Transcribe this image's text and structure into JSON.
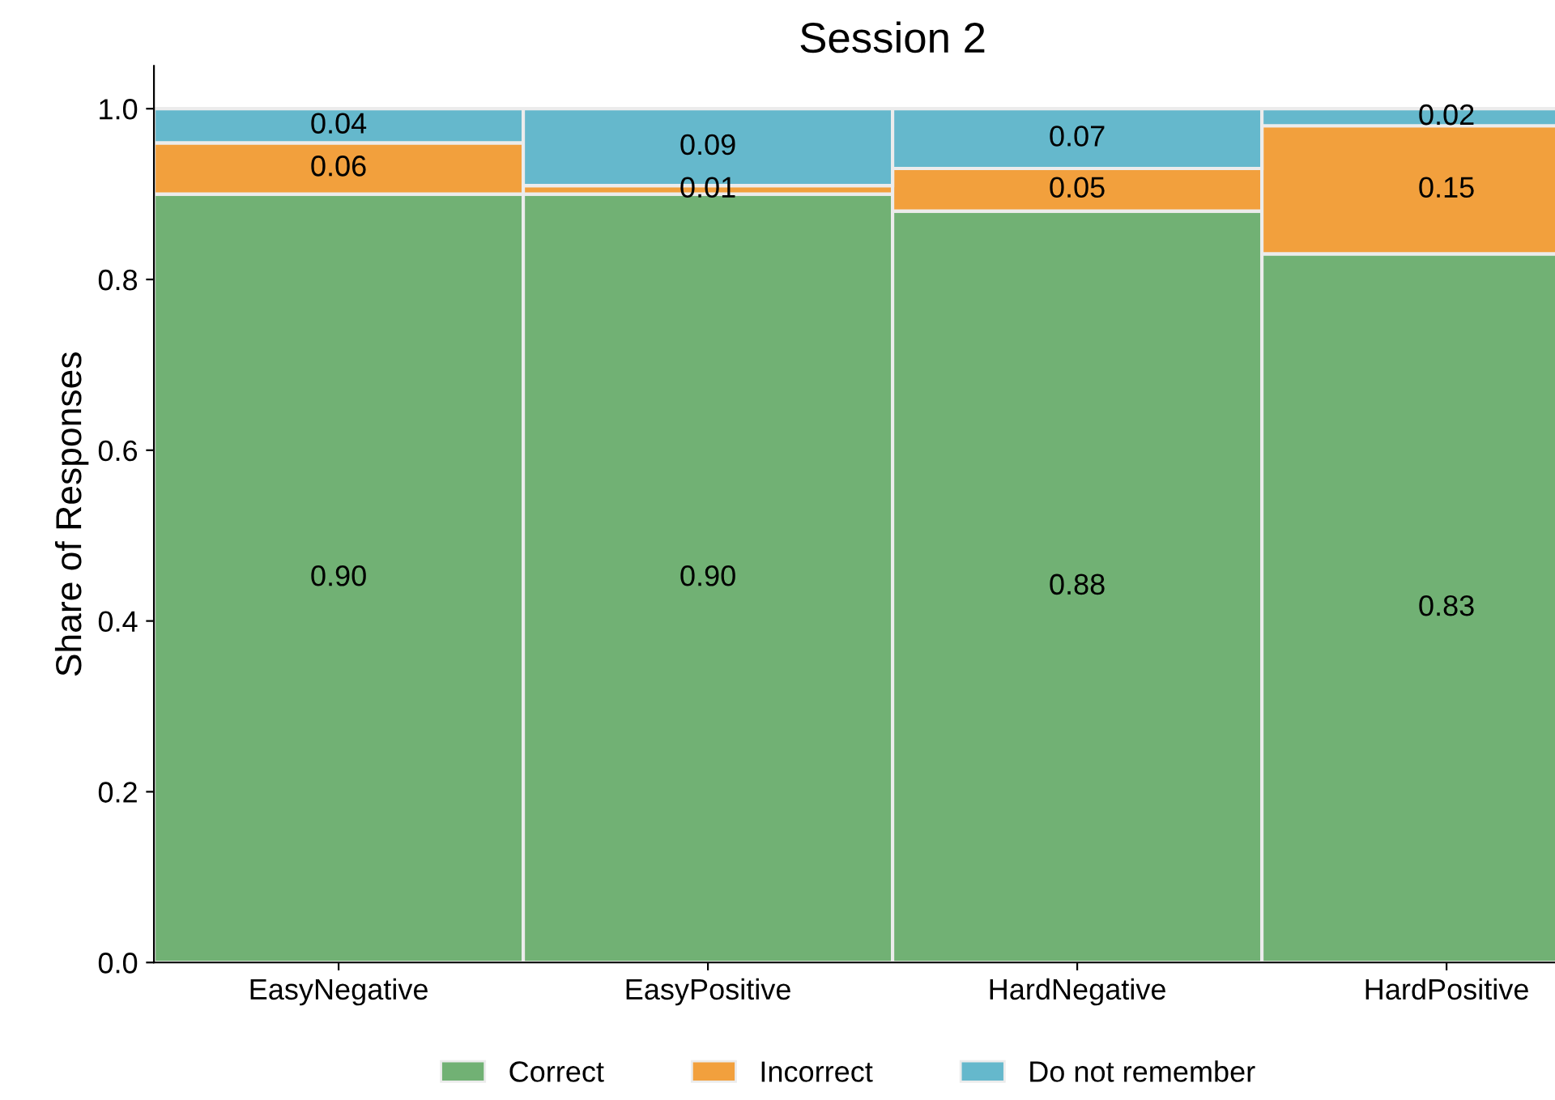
{
  "chart_data": {
    "type": "bar",
    "title": "Session 2",
    "ylabel": "Share of Responses",
    "categories": [
      "EasyNegative",
      "EasyPositive",
      "HardNegative",
      "HardPositive"
    ],
    "stacked": true,
    "series": [
      {
        "name": "Correct",
        "color": "#71b174",
        "values": [
          0.9,
          0.9,
          0.88,
          0.83
        ],
        "value_labels": [
          "0.90",
          "0.90",
          "0.88",
          "0.83"
        ]
      },
      {
        "name": "Incorrect",
        "color": "#f2a03d",
        "values": [
          0.06,
          0.01,
          0.05,
          0.15
        ],
        "value_labels": [
          "0.06",
          "0.01",
          "0.05",
          "0.15"
        ]
      },
      {
        "name": "Do not remember",
        "color": "#65b8cc",
        "values": [
          0.04,
          0.09,
          0.07,
          0.02
        ],
        "value_labels": [
          "0.04",
          "0.09",
          "0.07",
          "0.02"
        ]
      }
    ],
    "ylim": [
      0,
      1.05
    ],
    "yticks": [
      {
        "value": 0,
        "label": "0.0"
      },
      {
        "value": 0.2,
        "label": "0.2"
      },
      {
        "value": 0.4,
        "label": "0.4"
      },
      {
        "value": 0.6,
        "label": "0.6"
      },
      {
        "value": 0.8,
        "label": "0.8"
      },
      {
        "value": 1.0,
        "label": "1.0"
      }
    ],
    "grid": false,
    "legend": "bottom"
  }
}
